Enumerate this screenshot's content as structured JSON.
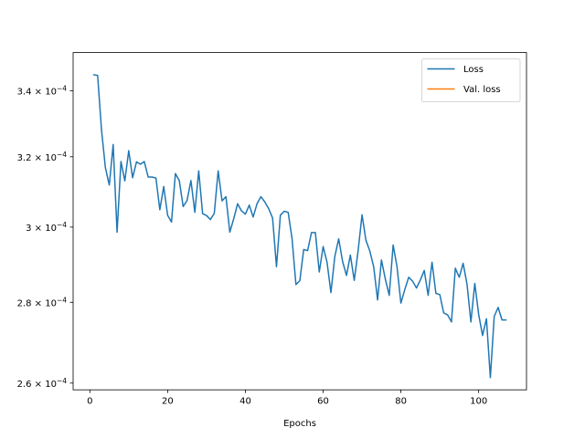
{
  "chart_data": {
    "type": "line",
    "xlabel": "Epochs",
    "ylabel": "",
    "title": "",
    "xlim": [
      -4.3,
      112.3
    ],
    "ylim": [
      0.0002584,
      0.0003521
    ],
    "y_scale": "log",
    "x_ticks": [
      0,
      20,
      40,
      60,
      80,
      100
    ],
    "y_ticks": [
      {
        "value": 0.00026,
        "label": "2.6 × 10^-4",
        "mantissa": "2.6",
        "exp": "−4"
      },
      {
        "value": 0.00028,
        "label": "2.8 × 10^-4",
        "mantissa": "2.8",
        "exp": "−4"
      },
      {
        "value": 0.0003,
        "label": "3 × 10^-4",
        "mantissa": "3",
        "exp": "−4"
      },
      {
        "value": 0.00032,
        "label": "3.2 × 10^-4",
        "mantissa": "3.2",
        "exp": "−4"
      },
      {
        "value": 0.00034,
        "label": "3.4 × 10^-4",
        "mantissa": "3.4",
        "exp": "−4"
      }
    ],
    "grid": false,
    "legend_position": "top-right",
    "series": [
      {
        "name": "Loss",
        "color": "#1f77b4",
        "x": [
          1,
          2,
          3,
          4,
          5,
          6,
          7,
          8,
          9,
          10,
          11,
          12,
          13,
          14,
          15,
          16,
          17,
          18,
          19,
          20,
          21,
          22,
          23,
          24,
          25,
          26,
          27,
          28,
          29,
          30,
          31,
          32,
          33,
          34,
          35,
          36,
          37,
          38,
          39,
          40,
          41,
          42,
          43,
          44,
          45,
          46,
          47,
          48,
          49,
          50,
          51,
          52,
          53,
          54,
          55,
          56,
          57,
          58,
          59,
          60,
          61,
          62,
          63,
          64,
          65,
          66,
          67,
          68,
          69,
          70,
          71,
          72,
          73,
          74,
          75,
          76,
          77,
          78,
          79,
          80,
          81,
          82,
          83,
          84,
          85,
          86,
          87,
          88,
          89,
          90,
          91,
          92,
          93,
          94,
          95,
          96,
          97,
          98,
          99,
          100,
          101,
          102,
          103,
          104,
          105,
          106,
          107
        ],
        "y": [
          0.000345,
          0.0003448,
          0.000328,
          0.0003168,
          0.0003118,
          0.0003236,
          0.0002986,
          0.0003186,
          0.000313,
          0.0003218,
          0.0003139,
          0.0003185,
          0.0003178,
          0.0003186,
          0.0003141,
          0.0003141,
          0.0003138,
          0.0003048,
          0.0003114,
          0.0003033,
          0.0003014,
          0.0003151,
          0.0003131,
          0.0003057,
          0.0003074,
          0.0003131,
          0.0003041,
          0.0003159,
          0.0003037,
          0.0003032,
          0.0003021,
          0.0003038,
          0.0003159,
          0.0003073,
          0.0003085,
          0.0002986,
          0.0003023,
          0.0003065,
          0.0003045,
          0.0003036,
          0.0003061,
          0.0003028,
          0.0003065,
          0.0003085,
          0.000307,
          0.0003051,
          0.0003025,
          0.0002893,
          0.0003033,
          0.0003044,
          0.0003041,
          0.0002969,
          0.0002846,
          0.0002856,
          0.0002939,
          0.0002936,
          0.0002985,
          0.0002985,
          0.0002879,
          0.0002947,
          0.0002905,
          0.0002825,
          0.000292,
          0.0002968,
          0.0002907,
          0.000287,
          0.0002924,
          0.0002857,
          0.0002936,
          0.0003034,
          0.0002964,
          0.0002935,
          0.0002893,
          0.0002806,
          0.0002911,
          0.000286,
          0.0002818,
          0.0002951,
          0.0002893,
          0.0002798,
          0.0002833,
          0.0002865,
          0.0002855,
          0.0002837,
          0.0002858,
          0.0002883,
          0.0002818,
          0.0002905,
          0.0002823,
          0.000282,
          0.0002773,
          0.0002768,
          0.000275,
          0.0002889,
          0.0002865,
          0.0002902,
          0.0002847,
          0.000275,
          0.0002849,
          0.0002769,
          0.0002716,
          0.0002758,
          0.0002613,
          0.0002764,
          0.0002787,
          0.0002755,
          0.0002755
        ]
      },
      {
        "name": "Val. loss",
        "color": "#ff7f0e",
        "x": [],
        "y": []
      }
    ]
  }
}
